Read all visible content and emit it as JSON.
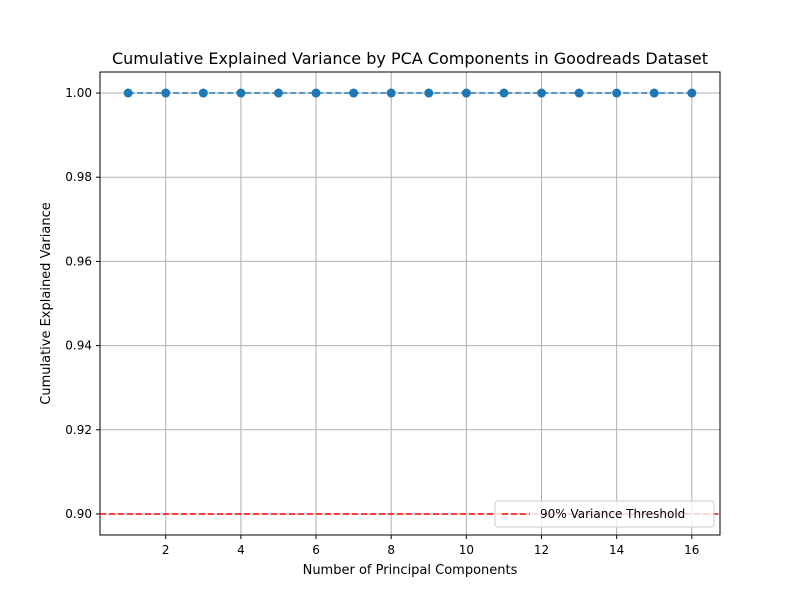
{
  "chart_data": {
    "type": "line",
    "title": "Cumulative Explained Variance by PCA Components in Goodreads Dataset",
    "xlabel": "Number of Principal Components",
    "ylabel": "Cumulative Explained Variance",
    "xlim": [
      0.25,
      16.75
    ],
    "ylim": [
      0.895,
      1.005
    ],
    "xticks": [
      2,
      4,
      6,
      8,
      10,
      12,
      14,
      16
    ],
    "xtick_labels": [
      "2",
      "4",
      "6",
      "8",
      "10",
      "12",
      "14",
      "16"
    ],
    "yticks": [
      0.9,
      0.92,
      0.94,
      0.96,
      0.98,
      1.0
    ],
    "ytick_labels": [
      "0.90",
      "0.92",
      "0.94",
      "0.96",
      "0.98",
      "1.00"
    ],
    "grid": true,
    "series": [
      {
        "x": [
          1,
          2,
          3,
          4,
          5,
          6,
          7,
          8,
          9,
          10,
          11,
          12,
          13,
          14,
          15,
          16
        ],
        "values": [
          1.0,
          1.0,
          1.0,
          1.0,
          1.0,
          1.0,
          1.0,
          1.0,
          1.0,
          1.0,
          1.0,
          1.0,
          1.0,
          1.0,
          1.0,
          1.0
        ],
        "color": "#1f77b4",
        "linestyle": "dashed",
        "marker": "circle"
      }
    ],
    "threshold": {
      "y": 0.9,
      "label": "90% Variance Threshold",
      "color": "#ff0000",
      "linestyle": "dashed"
    },
    "legend_position": "lower-right"
  }
}
